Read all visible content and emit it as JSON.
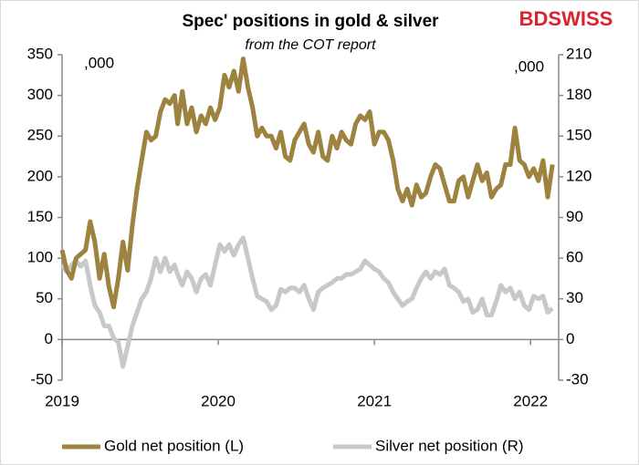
{
  "chart_data": {
    "type": "line",
    "title": "Spec' positions in gold & silver",
    "subtitle": "from the COT report",
    "logo": "BDSWISS",
    "y_unit_label": ",000",
    "y2_unit_label": ",000",
    "x": [
      2019.0,
      2019.03,
      2019.06,
      2019.09,
      2019.12,
      2019.15,
      2019.18,
      2019.21,
      2019.24,
      2019.27,
      2019.3,
      2019.33,
      2019.36,
      2019.39,
      2019.42,
      2019.45,
      2019.48,
      2019.51,
      2019.54,
      2019.57,
      2019.6,
      2019.63,
      2019.66,
      2019.69,
      2019.72,
      2019.74,
      2019.77,
      2019.8,
      2019.83,
      2019.86,
      2019.89,
      2019.92,
      2019.95,
      2019.98,
      2020.01,
      2020.04,
      2020.07,
      2020.1,
      2020.13,
      2020.16,
      2020.19,
      2020.22,
      2020.25,
      2020.28,
      2020.31,
      2020.34,
      2020.37,
      2020.4,
      2020.43,
      2020.46,
      2020.49,
      2020.52,
      2020.55,
      2020.58,
      2020.61,
      2020.64,
      2020.67,
      2020.7,
      2020.73,
      2020.76,
      2020.79,
      2020.82,
      2020.85,
      2020.88,
      2020.91,
      2020.94,
      2020.97,
      2021.0,
      2021.03,
      2021.06,
      2021.09,
      2021.12,
      2021.15,
      2021.18,
      2021.21,
      2021.24,
      2021.27,
      2021.3,
      2021.33,
      2021.36,
      2021.39,
      2021.42,
      2021.45,
      2021.48,
      2021.51,
      2021.54,
      2021.57,
      2021.6,
      2021.63,
      2021.66,
      2021.69,
      2021.72,
      2021.75,
      2021.78,
      2021.81,
      2021.84,
      2021.87,
      2021.9,
      2021.93,
      2021.96,
      2021.99,
      2022.02,
      2022.05,
      2022.08,
      2022.11,
      2022.14
    ],
    "series": [
      {
        "name": "Gold net position (L)",
        "color": "#9e8240",
        "axis": "y",
        "values": [
          110,
          85,
          75,
          100,
          105,
          110,
          145,
          120,
          75,
          105,
          65,
          40,
          75,
          120,
          85,
          140,
          185,
          220,
          255,
          245,
          250,
          280,
          295,
          290,
          300,
          265,
          305,
          265,
          285,
          255,
          275,
          265,
          285,
          270,
          285,
          325,
          310,
          330,
          305,
          345,
          310,
          285,
          250,
          260,
          250,
          250,
          235,
          255,
          225,
          220,
          245,
          255,
          265,
          240,
          230,
          255,
          225,
          220,
          250,
          235,
          255,
          245,
          240,
          265,
          275,
          270,
          280,
          240,
          255,
          255,
          245,
          220,
          185,
          170,
          185,
          165,
          190,
          175,
          180,
          200,
          215,
          210,
          190,
          170,
          170,
          195,
          200,
          175,
          195,
          215,
          195,
          205,
          175,
          185,
          190,
          215,
          215,
          260,
          220,
          215,
          200,
          210,
          195,
          220,
          175,
          215
        ]
      },
      {
        "name": "Silver net position (R)",
        "color": "#c8c8c8",
        "axis": "y2",
        "values": [
          55,
          50,
          55,
          58,
          54,
          58,
          40,
          25,
          20,
          10,
          10,
          1,
          -2,
          -20,
          -5,
          10,
          20,
          30,
          35,
          45,
          60,
          50,
          60,
          50,
          55,
          48,
          40,
          50,
          45,
          35,
          45,
          48,
          40,
          55,
          70,
          65,
          70,
          62,
          70,
          75,
          60,
          45,
          32,
          30,
          28,
          22,
          25,
          37,
          35,
          38,
          38,
          35,
          40,
          30,
          22,
          35,
          38,
          40,
          42,
          45,
          45,
          48,
          48,
          50,
          52,
          58,
          55,
          52,
          50,
          45,
          42,
          35,
          30,
          25,
          28,
          30,
          38,
          45,
          50,
          45,
          50,
          48,
          52,
          40,
          38,
          35,
          28,
          30,
          20,
          22,
          30,
          18,
          18,
          28,
          40,
          35,
          38,
          30,
          35,
          25,
          22,
          32,
          30,
          32,
          20,
          23
        ]
      }
    ],
    "xlim": [
      2019,
      2022.18
    ],
    "xticks": [
      2019,
      2020,
      2021,
      2022
    ],
    "ylim": [
      -50,
      350
    ],
    "yticks": [
      -50,
      0,
      50,
      100,
      150,
      200,
      250,
      300,
      350
    ],
    "y2lim": [
      -30,
      210
    ],
    "y2ticks": [
      -30,
      0,
      30,
      60,
      90,
      120,
      150,
      180,
      210
    ],
    "grid": false,
    "legend": "bottom"
  }
}
